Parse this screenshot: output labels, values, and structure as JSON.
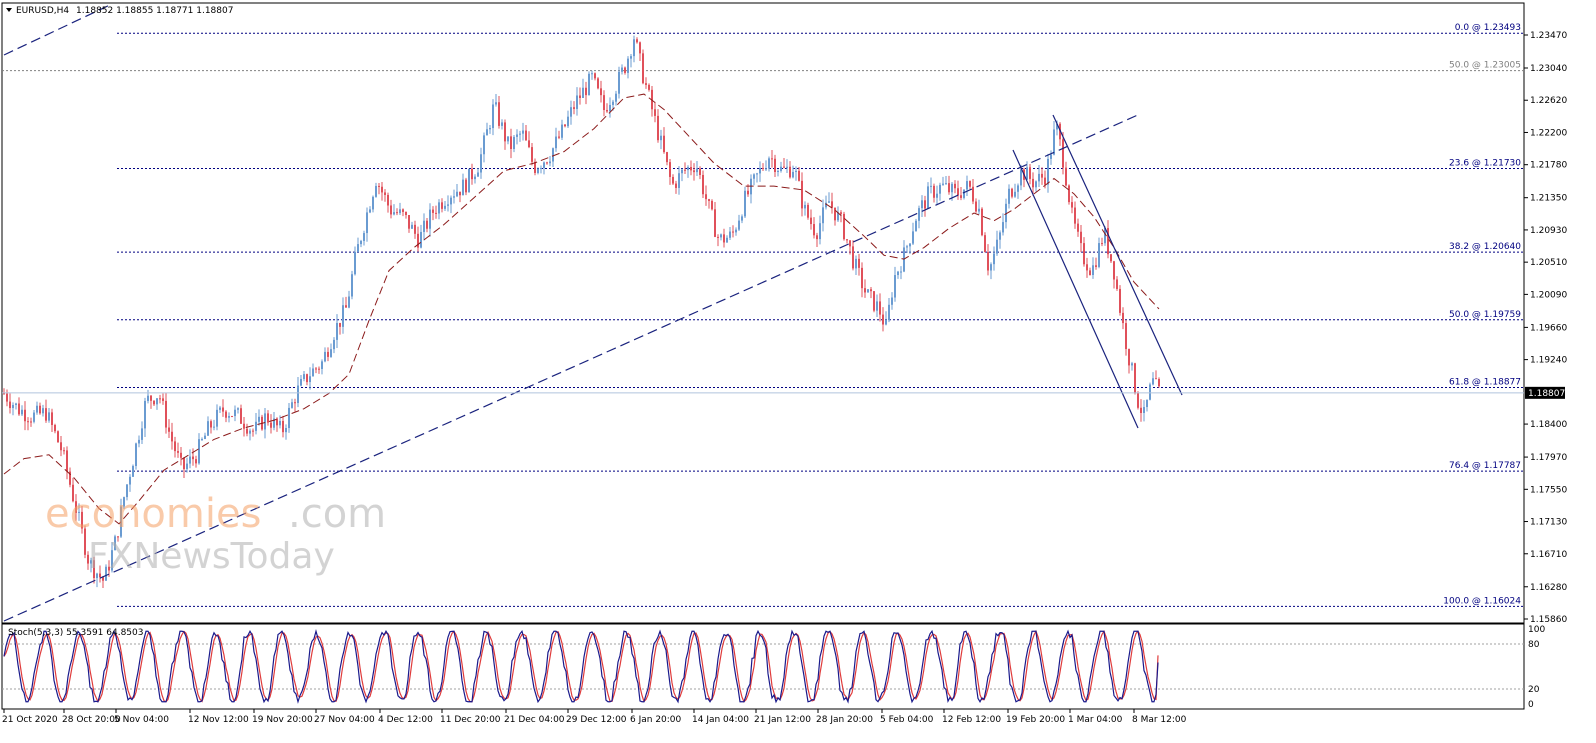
{
  "header": {
    "symbol_timeframe": "EURUSD,H4",
    "ohlc": "1.18852 1.18855 1.18771 1.18807"
  },
  "watermark": {
    "part1": "economies",
    "part2": ".com",
    "part3": "FXNewsToday"
  },
  "colors": {
    "bull": "#6a9bd1",
    "bear": "#e0505a",
    "fib": "#000080",
    "fib_gray": "#808080",
    "ma": "#8b1a1a",
    "trend": "#1a237e",
    "stoch_main": "#1a1a8c",
    "stoch_signal": "#e03c3c",
    "price_label_bg": "#000000",
    "price_label_text": "#ffffff"
  },
  "chart_data": {
    "type": "line",
    "instrument": "EURUSD",
    "timeframe": "H4",
    "current_price": "1.18807",
    "ylim": [
      1.1586,
      1.2347
    ],
    "y_ticks": [
      "1.23470",
      "1.23040",
      "1.22620",
      "1.22200",
      "1.21780",
      "1.21350",
      "1.20930",
      "1.20510",
      "1.20090",
      "1.19660",
      "1.19240",
      "1.18400",
      "1.17970",
      "1.17550",
      "1.17130",
      "1.16710",
      "1.16280",
      "1.15860"
    ],
    "y_tick_values": [
      1.2347,
      1.2304,
      1.2262,
      1.222,
      1.2178,
      1.2135,
      1.2093,
      1.2051,
      1.2009,
      1.1966,
      1.1924,
      1.184,
      1.1797,
      1.1755,
      1.1713,
      1.1671,
      1.1628,
      1.1586
    ],
    "x_ticks": [
      "21 Oct 2020",
      "28 Oct 20:00",
      "5 Nov 04:00",
      "12 Nov 12:00",
      "19 Nov 20:00",
      "27 Nov 04:00",
      "4 Dec 12:00",
      "11 Dec 20:00",
      "21 Dec 04:00",
      "29 Dec 12:00",
      "6 Jan 20:00",
      "14 Jan 04:00",
      "21 Jan 12:00",
      "28 Jan 20:00",
      "5 Feb 04:00",
      "12 Feb 12:00",
      "19 Feb 20:00",
      "1 Mar 04:00",
      "8 Mar 12:00"
    ],
    "fib_levels": [
      {
        "label": "0.0 @ 1.23493",
        "price": 1.23493,
        "style": "blue"
      },
      {
        "label": "50.0 @ 1.23005",
        "price": 1.23005,
        "style": "gray"
      },
      {
        "label": "23.6 @ 1.21730",
        "price": 1.2173,
        "style": "blue"
      },
      {
        "label": "38.2 @ 1.20640",
        "price": 1.2064,
        "style": "blue"
      },
      {
        "label": "50.0 @ 1.19759",
        "price": 1.19759,
        "style": "blue"
      },
      {
        "label": "61.8 @ 1.18877",
        "price": 1.18877,
        "style": "blue"
      },
      {
        "label": "76.4 @ 1.17787",
        "price": 1.17787,
        "style": "blue"
      },
      {
        "label": "100.0 @ 1.16024",
        "price": 1.16024,
        "style": "blue"
      }
    ],
    "price_path": [
      [
        0,
        1.188
      ],
      [
        14,
        1.186
      ],
      [
        28,
        1.185
      ],
      [
        42,
        1.1855
      ],
      [
        58,
        1.1805
      ],
      [
        72,
        1.173
      ],
      [
        85,
        1.166
      ],
      [
        100,
        1.1635
      ],
      [
        112,
        1.169
      ],
      [
        120,
        1.1745
      ],
      [
        130,
        1.18
      ],
      [
        142,
        1.187
      ],
      [
        155,
        1.188
      ],
      [
        165,
        1.183
      ],
      [
        178,
        1.178
      ],
      [
        192,
        1.18
      ],
      [
        205,
        1.1835
      ],
      [
        220,
        1.186
      ],
      [
        235,
        1.185
      ],
      [
        250,
        1.183
      ],
      [
        262,
        1.185
      ],
      [
        278,
        1.183
      ],
      [
        292,
        1.188
      ],
      [
        305,
        1.1905
      ],
      [
        318,
        1.192
      ],
      [
        330,
        1.196
      ],
      [
        342,
        1.199
      ],
      [
        352,
        1.206
      ],
      [
        362,
        1.211
      ],
      [
        372,
        1.216
      ],
      [
        386,
        1.212
      ],
      [
        400,
        1.211
      ],
      [
        415,
        1.208
      ],
      [
        430,
        1.212
      ],
      [
        445,
        1.214
      ],
      [
        460,
        1.215
      ],
      [
        475,
        1.218
      ],
      [
        490,
        1.2255
      ],
      [
        505,
        1.22
      ],
      [
        518,
        1.222
      ],
      [
        530,
        1.2175
      ],
      [
        545,
        1.219
      ],
      [
        558,
        1.222
      ],
      [
        572,
        1.226
      ],
      [
        588,
        1.229
      ],
      [
        600,
        1.225
      ],
      [
        612,
        1.228
      ],
      [
        622,
        1.231
      ],
      [
        630,
        1.2345
      ],
      [
        638,
        1.23
      ],
      [
        648,
        1.225
      ],
      [
        658,
        1.22
      ],
      [
        668,
        1.215
      ],
      [
        680,
        1.217
      ],
      [
        692,
        1.218
      ],
      [
        705,
        1.212
      ],
      [
        715,
        1.208
      ],
      [
        728,
        1.2085
      ],
      [
        740,
        1.213
      ],
      [
        752,
        1.216
      ],
      [
        765,
        1.219
      ],
      [
        778,
        1.217
      ],
      [
        790,
        1.2175
      ],
      [
        800,
        1.212
      ],
      [
        812,
        1.209
      ],
      [
        825,
        1.213
      ],
      [
        838,
        1.21
      ],
      [
        850,
        1.205
      ],
      [
        862,
        1.201
      ],
      [
        875,
        1.199
      ],
      [
        882,
        1.1965
      ],
      [
        890,
        1.203
      ],
      [
        900,
        1.206
      ],
      [
        912,
        1.211
      ],
      [
        925,
        1.214
      ],
      [
        938,
        1.215
      ],
      [
        952,
        1.214
      ],
      [
        965,
        1.215
      ],
      [
        975,
        1.212
      ],
      [
        985,
        1.204
      ],
      [
        995,
        1.208
      ],
      [
        1005,
        1.214
      ],
      [
        1018,
        1.217
      ],
      [
        1030,
        1.2155
      ],
      [
        1042,
        1.2165
      ],
      [
        1052,
        1.223
      ],
      [
        1060,
        1.218
      ],
      [
        1068,
        1.211
      ],
      [
        1078,
        1.206
      ],
      [
        1088,
        1.204
      ],
      [
        1100,
        1.209
      ],
      [
        1110,
        1.204
      ],
      [
        1118,
        1.1975
      ],
      [
        1126,
        1.192
      ],
      [
        1134,
        1.187
      ],
      [
        1140,
        1.185
      ],
      [
        1148,
        1.1895
      ],
      [
        1155,
        1.1881
      ]
    ],
    "ma_path": [
      [
        0,
        1.1775
      ],
      [
        20,
        1.1795
      ],
      [
        45,
        1.18
      ],
      [
        70,
        1.177
      ],
      [
        95,
        1.173
      ],
      [
        115,
        1.171
      ],
      [
        135,
        1.174
      ],
      [
        160,
        1.178
      ],
      [
        185,
        1.18
      ],
      [
        210,
        1.182
      ],
      [
        240,
        1.1835
      ],
      [
        270,
        1.1845
      ],
      [
        300,
        1.186
      ],
      [
        325,
        1.188
      ],
      [
        345,
        1.1905
      ],
      [
        365,
        1.1975
      ],
      [
        385,
        1.204
      ],
      [
        410,
        1.207
      ],
      [
        440,
        1.21
      ],
      [
        470,
        1.2135
      ],
      [
        500,
        1.217
      ],
      [
        530,
        1.218
      ],
      [
        560,
        1.2195
      ],
      [
        590,
        1.2225
      ],
      [
        620,
        1.2265
      ],
      [
        640,
        1.227
      ],
      [
        660,
        1.225
      ],
      [
        685,
        1.2215
      ],
      [
        710,
        1.218
      ],
      [
        740,
        1.215
      ],
      [
        770,
        1.215
      ],
      [
        800,
        1.2145
      ],
      [
        830,
        1.212
      ],
      [
        860,
        1.2085
      ],
      [
        880,
        1.206
      ],
      [
        900,
        1.2055
      ],
      [
        920,
        1.207
      ],
      [
        945,
        1.2095
      ],
      [
        970,
        1.2115
      ],
      [
        990,
        1.2105
      ],
      [
        1010,
        1.212
      ],
      [
        1030,
        1.214
      ],
      [
        1050,
        1.216
      ],
      [
        1070,
        1.214
      ],
      [
        1090,
        1.211
      ],
      [
        1110,
        1.207
      ],
      [
        1130,
        1.2025
      ],
      [
        1155,
        1.199
      ]
    ],
    "stochastic": {
      "label": "Stoch(5,3,3) 55.3591 64.8503",
      "k": 55.3591,
      "d": 64.8503,
      "levels": [
        "100",
        "80",
        "20",
        "0"
      ],
      "level_values": [
        100,
        80,
        20,
        0
      ]
    }
  }
}
